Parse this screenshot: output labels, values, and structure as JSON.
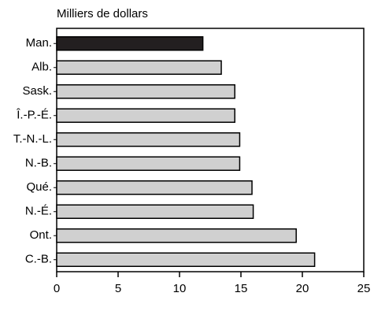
{
  "chart_data": {
    "type": "bar",
    "orientation": "horizontal",
    "title": "Milliers de dollars",
    "categories": [
      "Man.",
      "Alb.",
      "Sask.",
      "Î.-P.-É.",
      "T.-N.-L.",
      "N.-B.",
      "Qué.",
      "N.-É.",
      "Ont.",
      "C.-B."
    ],
    "values": [
      11.9,
      13.4,
      14.5,
      14.5,
      14.9,
      14.9,
      15.9,
      16.0,
      19.5,
      21.0
    ],
    "colors": [
      "#231f20",
      "#d0d0d0",
      "#d0d0d0",
      "#d0d0d0",
      "#d0d0d0",
      "#d0d0d0",
      "#d0d0d0",
      "#d0d0d0",
      "#d0d0d0",
      "#d0d0d0"
    ],
    "xlim": [
      0,
      25
    ],
    "xticks": [
      0,
      5,
      10,
      15,
      20,
      25
    ],
    "grid": false
  }
}
